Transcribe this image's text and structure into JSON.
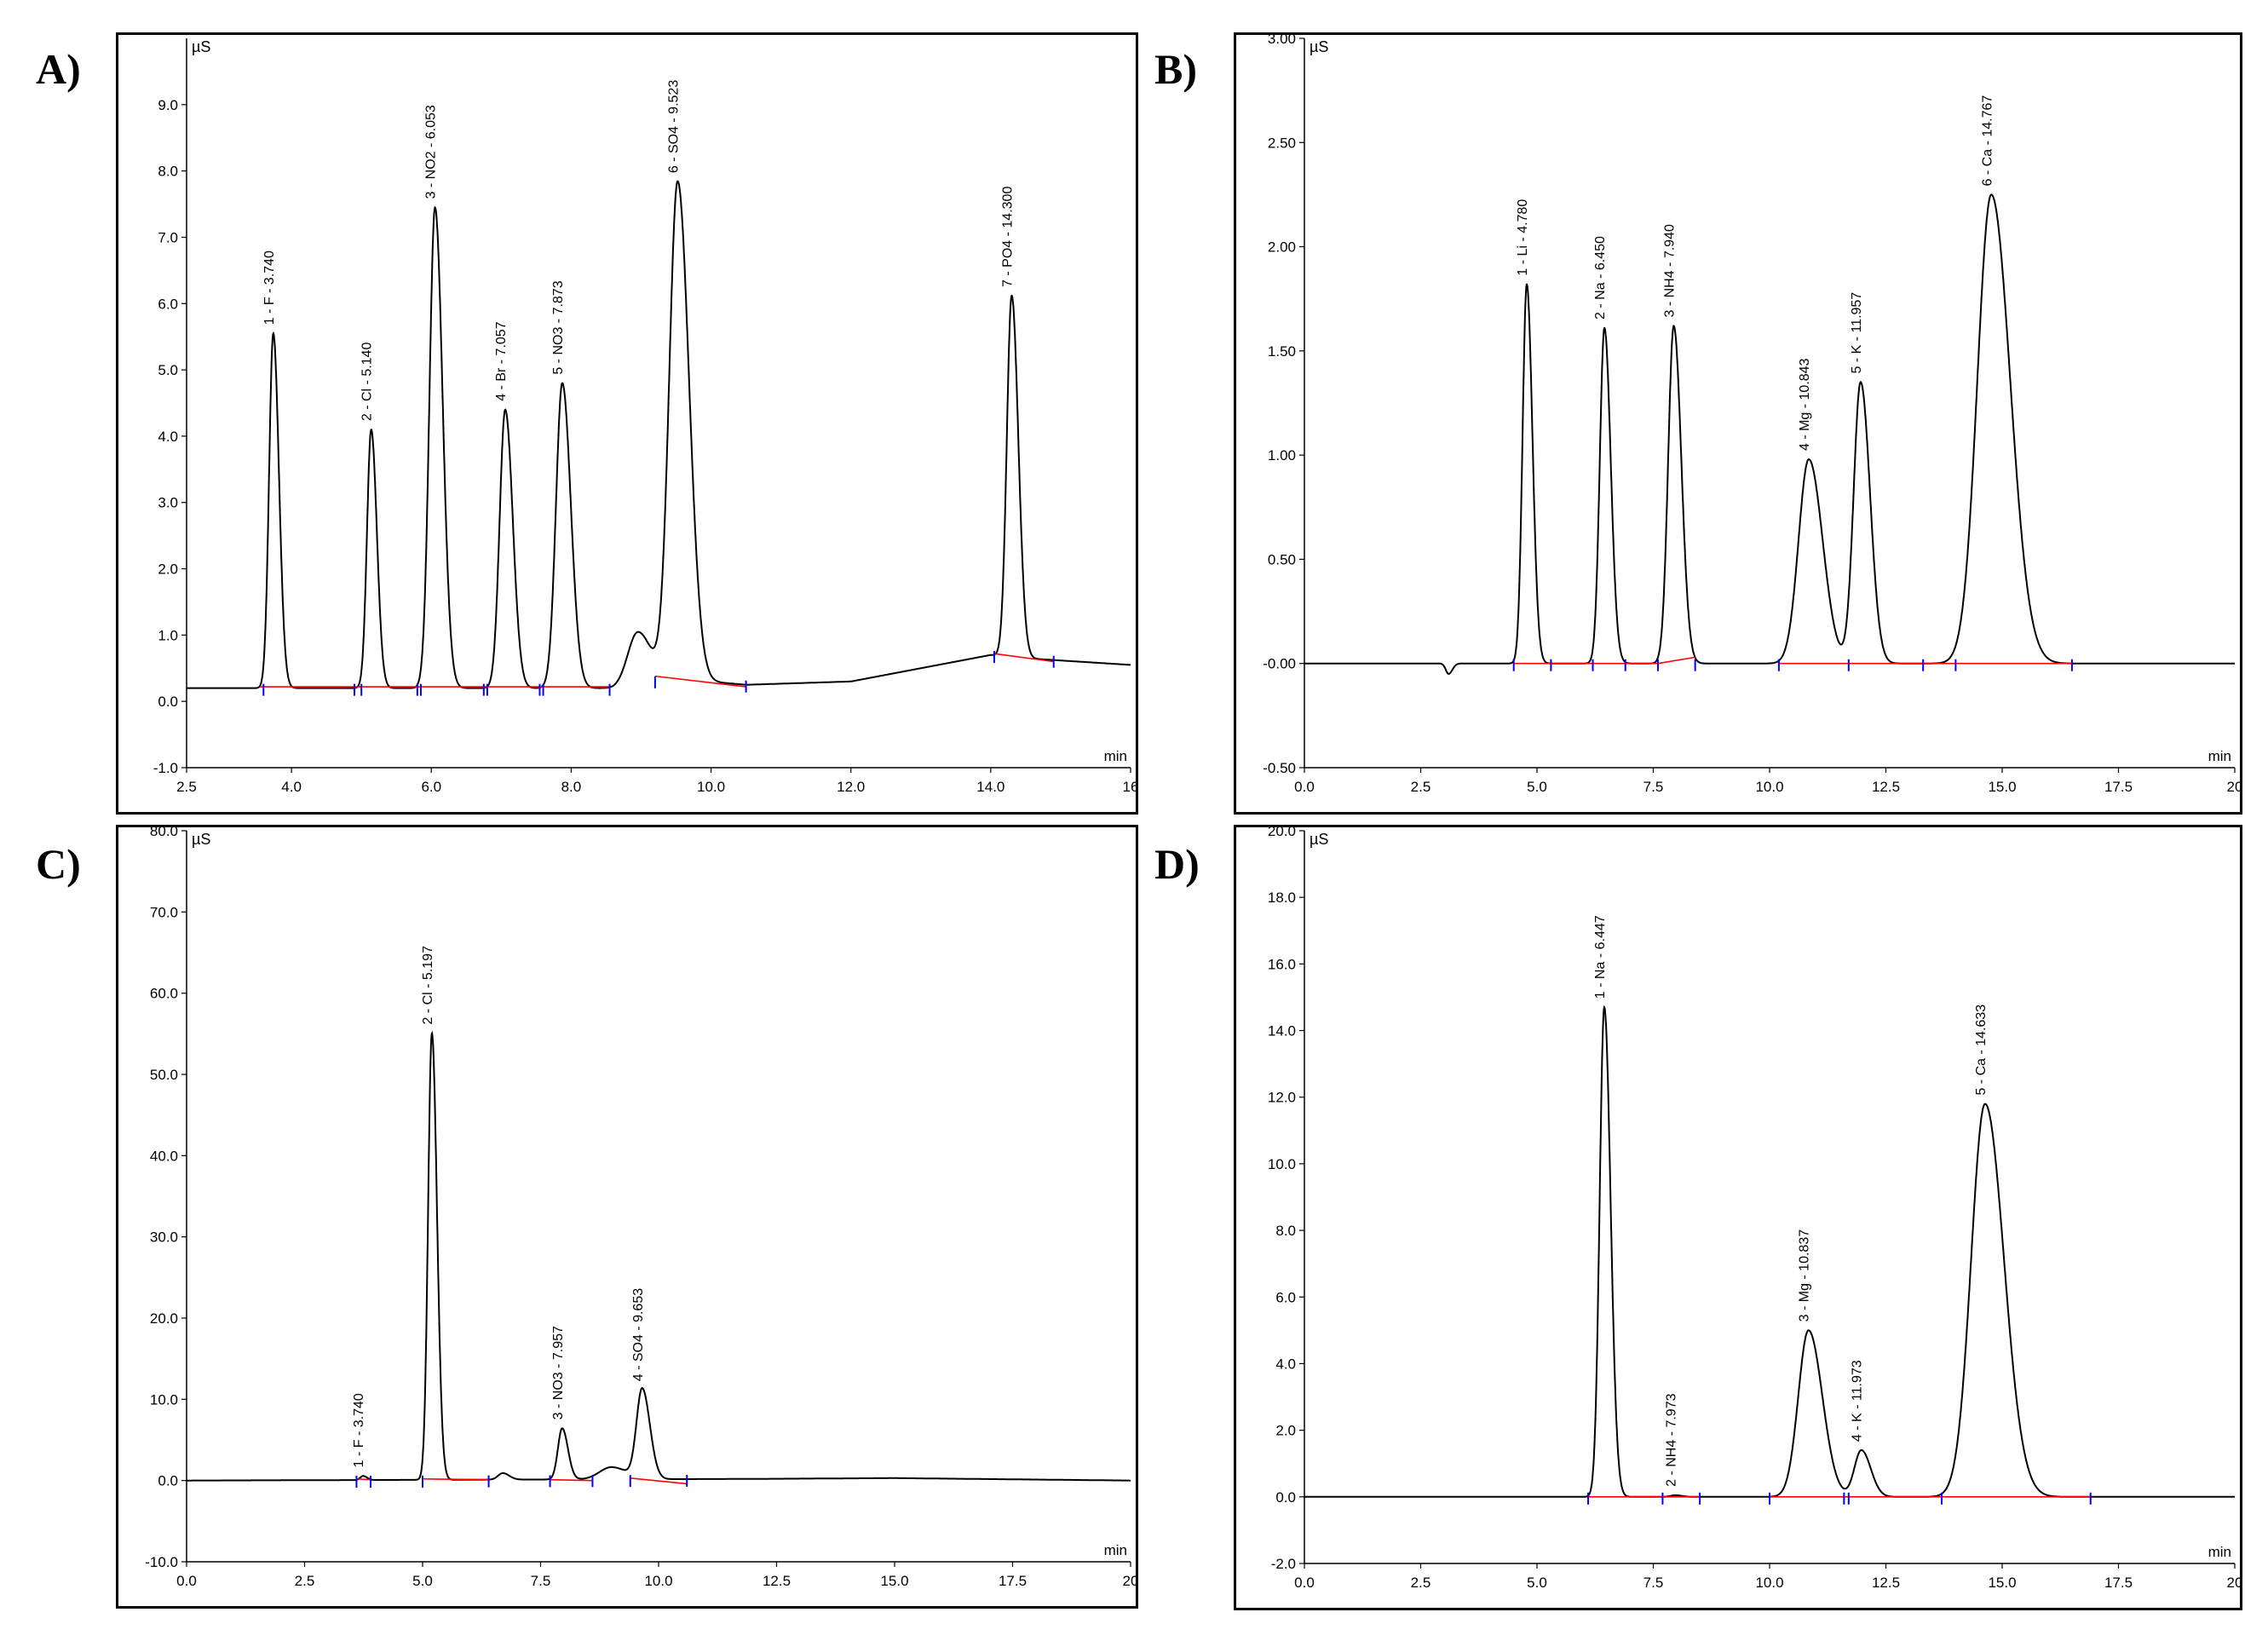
{
  "panels": [
    {
      "letter": "A)"
    },
    {
      "letter": "B)"
    },
    {
      "letter": "C)"
    },
    {
      "letter": "D)"
    }
  ],
  "colors": {
    "trace": "#000000",
    "baseline": "#ff0000",
    "marker": "#0000ff"
  },
  "chart_data": [
    {
      "type": "line",
      "panel": "A)",
      "unit_label": "µS",
      "xlabel": "min",
      "xlim": [
        2.5,
        16.0
      ],
      "ylim": [
        -1.0,
        10.0
      ],
      "x_ticks": [
        2.5,
        4.0,
        6.0,
        8.0,
        10.0,
        12.0,
        14.0,
        16.0
      ],
      "x_tick_labels": [
        "2.5",
        "4.0",
        "6.0",
        "8.0",
        "10.0",
        "12.0",
        "14.0",
        "16"
      ],
      "y_ticks": [
        -1.0,
        0.0,
        1.0,
        2.0,
        3.0,
        4.0,
        5.0,
        6.0,
        7.0,
        8.0,
        9.0
      ],
      "y_tick_labels": [
        "-1.0",
        "0.0",
        "1.0",
        "2.0",
        "3.0",
        "4.0",
        "5.0",
        "6.0",
        "7.0",
        "8.0",
        "9.0"
      ],
      "peaks": [
        {
          "label": "1 - F - 3.740",
          "rt": 3.74,
          "height": 5.35,
          "width": 0.06
        },
        {
          "label": "2 - Cl - 5.140",
          "rt": 5.14,
          "height": 3.9,
          "width": 0.06
        },
        {
          "label": "3 - NO2 - 6.053",
          "rt": 6.053,
          "height": 7.25,
          "width": 0.08
        },
        {
          "label": "4 - Br - 7.057",
          "rt": 7.057,
          "height": 4.2,
          "width": 0.08
        },
        {
          "label": "5 - NO3 - 7.873",
          "rt": 7.873,
          "height": 4.6,
          "width": 0.09
        },
        {
          "label": "6 - SO4 - 9.523",
          "rt": 9.523,
          "height": 7.5,
          "width": 0.12
        },
        {
          "label": "7 - PO4 - 14.300",
          "rt": 14.3,
          "height": 5.45,
          "width": 0.07
        }
      ],
      "minor_peaks": [
        {
          "rt": 8.95,
          "height": 0.78,
          "width": 0.14
        }
      ],
      "baseline_points": [
        [
          2.5,
          0.2
        ],
        [
          3.6,
          0.2
        ],
        [
          8.6,
          0.2
        ],
        [
          9.4,
          0.35
        ],
        [
          10.5,
          0.25
        ],
        [
          12.0,
          0.3
        ],
        [
          14.0,
          0.7
        ],
        [
          14.5,
          0.65
        ],
        [
          16.0,
          0.55
        ]
      ],
      "integration_segments": [
        [
          3.55,
          0.22,
          8.55,
          0.22
        ],
        [
          9.2,
          0.38,
          10.5,
          0.22
        ],
        [
          14.05,
          0.72,
          14.9,
          0.6
        ]
      ],
      "markers": [
        3.6,
        4.9,
        5.0,
        5.8,
        5.85,
        6.75,
        6.8,
        7.55,
        7.6,
        8.55,
        9.2,
        10.5,
        14.05,
        14.9
      ]
    },
    {
      "type": "line",
      "panel": "B)",
      "unit_label": "µS",
      "xlabel": "min",
      "xlim": [
        0.0,
        20.0
      ],
      "ylim": [
        -0.5,
        3.0
      ],
      "x_ticks": [
        0,
        2.5,
        5.0,
        7.5,
        10.0,
        12.5,
        15.0,
        17.5,
        20.0
      ],
      "x_tick_labels": [
        "0.0",
        "2.5",
        "5.0",
        "7.5",
        "10.0",
        "12.5",
        "15.0",
        "17.5",
        "20"
      ],
      "y_ticks": [
        -0.5,
        0.0,
        0.5,
        1.0,
        1.5,
        2.0,
        2.5,
        3.0
      ],
      "y_tick_labels": [
        "-0.50",
        "-0.00",
        "0.50",
        "1.00",
        "1.50",
        "2.00",
        "2.50",
        "3.00"
      ],
      "peaks": [
        {
          "label": "1 - Li - 4.780",
          "rt": 4.78,
          "height": 1.82,
          "width": 0.09
        },
        {
          "label": "2 - Na - 6.450",
          "rt": 6.45,
          "height": 1.61,
          "width": 0.1
        },
        {
          "label": "3 - NH4 - 7.940",
          "rt": 7.94,
          "height": 1.62,
          "width": 0.12
        },
        {
          "label": "4 - Mg - 10.843",
          "rt": 10.843,
          "height": 0.98,
          "width": 0.22
        },
        {
          "label": "5 - K - 11.957",
          "rt": 11.957,
          "height": 1.35,
          "width": 0.15
        },
        {
          "label": "6 - Ca - 14.767",
          "rt": 14.767,
          "height": 2.25,
          "width": 0.3
        }
      ],
      "minor_peaks": [
        {
          "rt": 3.1,
          "height": -0.05,
          "width": 0.06
        }
      ],
      "baseline_points": [
        [
          0,
          0
        ],
        [
          20.0,
          0
        ]
      ],
      "integration_segments": [
        [
          4.5,
          0,
          7.6,
          0
        ],
        [
          7.6,
          0,
          8.4,
          0.03
        ],
        [
          10.2,
          0,
          16.5,
          0
        ]
      ],
      "markers": [
        4.5,
        5.3,
        6.2,
        6.9,
        7.6,
        8.4,
        10.2,
        11.7,
        13.3,
        14.0,
        16.5
      ]
    },
    {
      "type": "line",
      "panel": "C)",
      "unit_label": "µS",
      "xlabel": "min",
      "xlim": [
        0.0,
        20.0
      ],
      "ylim": [
        -10.0,
        80.0
      ],
      "x_ticks": [
        0,
        2.5,
        5.0,
        7.5,
        10.0,
        12.5,
        15.0,
        17.5,
        20.0
      ],
      "x_tick_labels": [
        "0.0",
        "2.5",
        "5.0",
        "7.5",
        "10.0",
        "12.5",
        "15.0",
        "17.5",
        "20"
      ],
      "y_ticks": [
        -10,
        0,
        10,
        20,
        30,
        40,
        50,
        60,
        70,
        80
      ],
      "y_tick_labels": [
        "-10.0",
        "0.0",
        "10.0",
        "20.0",
        "30.0",
        "40.0",
        "50.0",
        "60.0",
        "70.0",
        "80.0"
      ],
      "peaks": [
        {
          "label": "1 - F - 3.740",
          "rt": 3.74,
          "height": 0.5,
          "width": 0.06
        },
        {
          "label": "2 - Cl - 5.197",
          "rt": 5.197,
          "height": 55.0,
          "width": 0.08
        },
        {
          "label": "3 - NO3 - 7.957",
          "rt": 7.957,
          "height": 6.3,
          "width": 0.09
        },
        {
          "label": "4 - SO4 - 9.653",
          "rt": 9.653,
          "height": 11.0,
          "width": 0.12
        }
      ],
      "minor_peaks": [
        {
          "rt": 6.7,
          "height": 0.8,
          "width": 0.1
        },
        {
          "rt": 9.0,
          "height": 1.5,
          "width": 0.25
        }
      ],
      "baseline_points": [
        [
          0,
          0
        ],
        [
          12.0,
          0.2
        ],
        [
          15.0,
          0.3
        ],
        [
          20.0,
          0
        ]
      ],
      "integration_segments": [
        [
          3.6,
          0.2,
          3.9,
          0.1
        ],
        [
          5.0,
          0.2,
          6.4,
          0.1
        ],
        [
          7.7,
          0.1,
          8.6,
          0.0
        ],
        [
          9.4,
          0.3,
          10.6,
          -0.4
        ]
      ],
      "markers": [
        3.6,
        3.9,
        5.0,
        6.4,
        7.7,
        8.6,
        9.4,
        10.6
      ]
    },
    {
      "type": "line",
      "panel": "D)",
      "unit_label": "µS",
      "xlabel": "min",
      "xlim": [
        0.0,
        20.0
      ],
      "ylim": [
        -2.0,
        20.0
      ],
      "x_ticks": [
        0,
        2.5,
        5.0,
        7.5,
        10.0,
        12.5,
        15.0,
        17.5,
        20.0
      ],
      "x_tick_labels": [
        "0.0",
        "2.5",
        "5.0",
        "7.5",
        "10.0",
        "12.5",
        "15.0",
        "17.5",
        "20"
      ],
      "y_ticks": [
        -2,
        0,
        2,
        4,
        6,
        8,
        10,
        12,
        14,
        16,
        18,
        20
      ],
      "y_tick_labels": [
        "-2.0",
        "0.0",
        "2.0",
        "4.0",
        "6.0",
        "8.0",
        "10.0",
        "12.0",
        "14.0",
        "16.0",
        "18.0",
        "20.0"
      ],
      "peaks": [
        {
          "label": "1 - Na - 6.447",
          "rt": 6.447,
          "height": 14.7,
          "width": 0.1
        },
        {
          "label": "2 - NH4 - 7.973",
          "rt": 7.973,
          "height": 0.05,
          "width": 0.1
        },
        {
          "label": "3 - Mg - 10.837",
          "rt": 10.837,
          "height": 5.0,
          "width": 0.22
        },
        {
          "label": "4 - K - 11.973",
          "rt": 11.973,
          "height": 1.4,
          "width": 0.15
        },
        {
          "label": "5 - Ca - 14.633",
          "rt": 14.633,
          "height": 11.8,
          "width": 0.3
        }
      ],
      "minor_peaks": [],
      "baseline_points": [
        [
          0,
          0
        ],
        [
          20.0,
          0
        ]
      ],
      "integration_segments": [
        [
          6.1,
          0,
          7.7,
          0
        ],
        [
          7.7,
          0,
          8.5,
          0
        ],
        [
          10.0,
          0,
          11.6,
          0
        ],
        [
          11.6,
          0,
          13.7,
          0
        ],
        [
          13.7,
          0,
          16.9,
          0
        ]
      ],
      "markers": [
        6.1,
        7.7,
        8.5,
        10.0,
        11.6,
        11.7,
        13.7,
        16.9
      ]
    }
  ]
}
